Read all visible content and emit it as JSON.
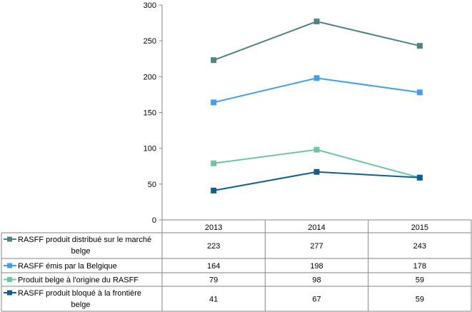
{
  "chart_data": {
    "type": "line",
    "title": "",
    "xlabel": "",
    "ylabel": "",
    "categories": [
      "2013",
      "2014",
      "2015"
    ],
    "ylim": [
      0,
      300
    ],
    "yticks": [
      "0",
      "50",
      "100",
      "150",
      "200",
      "250",
      "300"
    ],
    "grid": false,
    "legend": "data-table-left",
    "series": [
      {
        "name_lines": [
          "RASFF produit distribué sur le marché",
          "belge"
        ],
        "color": "#4f8481",
        "values": [
          223,
          277,
          243
        ],
        "labels": [
          "223",
          "277",
          "243"
        ]
      },
      {
        "name_lines": [
          "RASFF émis par la Belgique"
        ],
        "color": "#3fa0f0",
        "values": [
          164,
          198,
          178
        ],
        "labels": [
          "164",
          "198",
          "178"
        ]
      },
      {
        "name_lines": [
          "Produit belge à l'origine du RASFF"
        ],
        "color": "#6cc5a9",
        "values": [
          79,
          98,
          59
        ],
        "labels": [
          "79",
          "98",
          "59"
        ]
      },
      {
        "name_lines": [
          "RASFF produit bloqué à la frontière",
          "belge"
        ],
        "color": "#0f5f92",
        "values": [
          41,
          67,
          59
        ],
        "labels": [
          "41",
          "67",
          "59"
        ]
      }
    ]
  }
}
